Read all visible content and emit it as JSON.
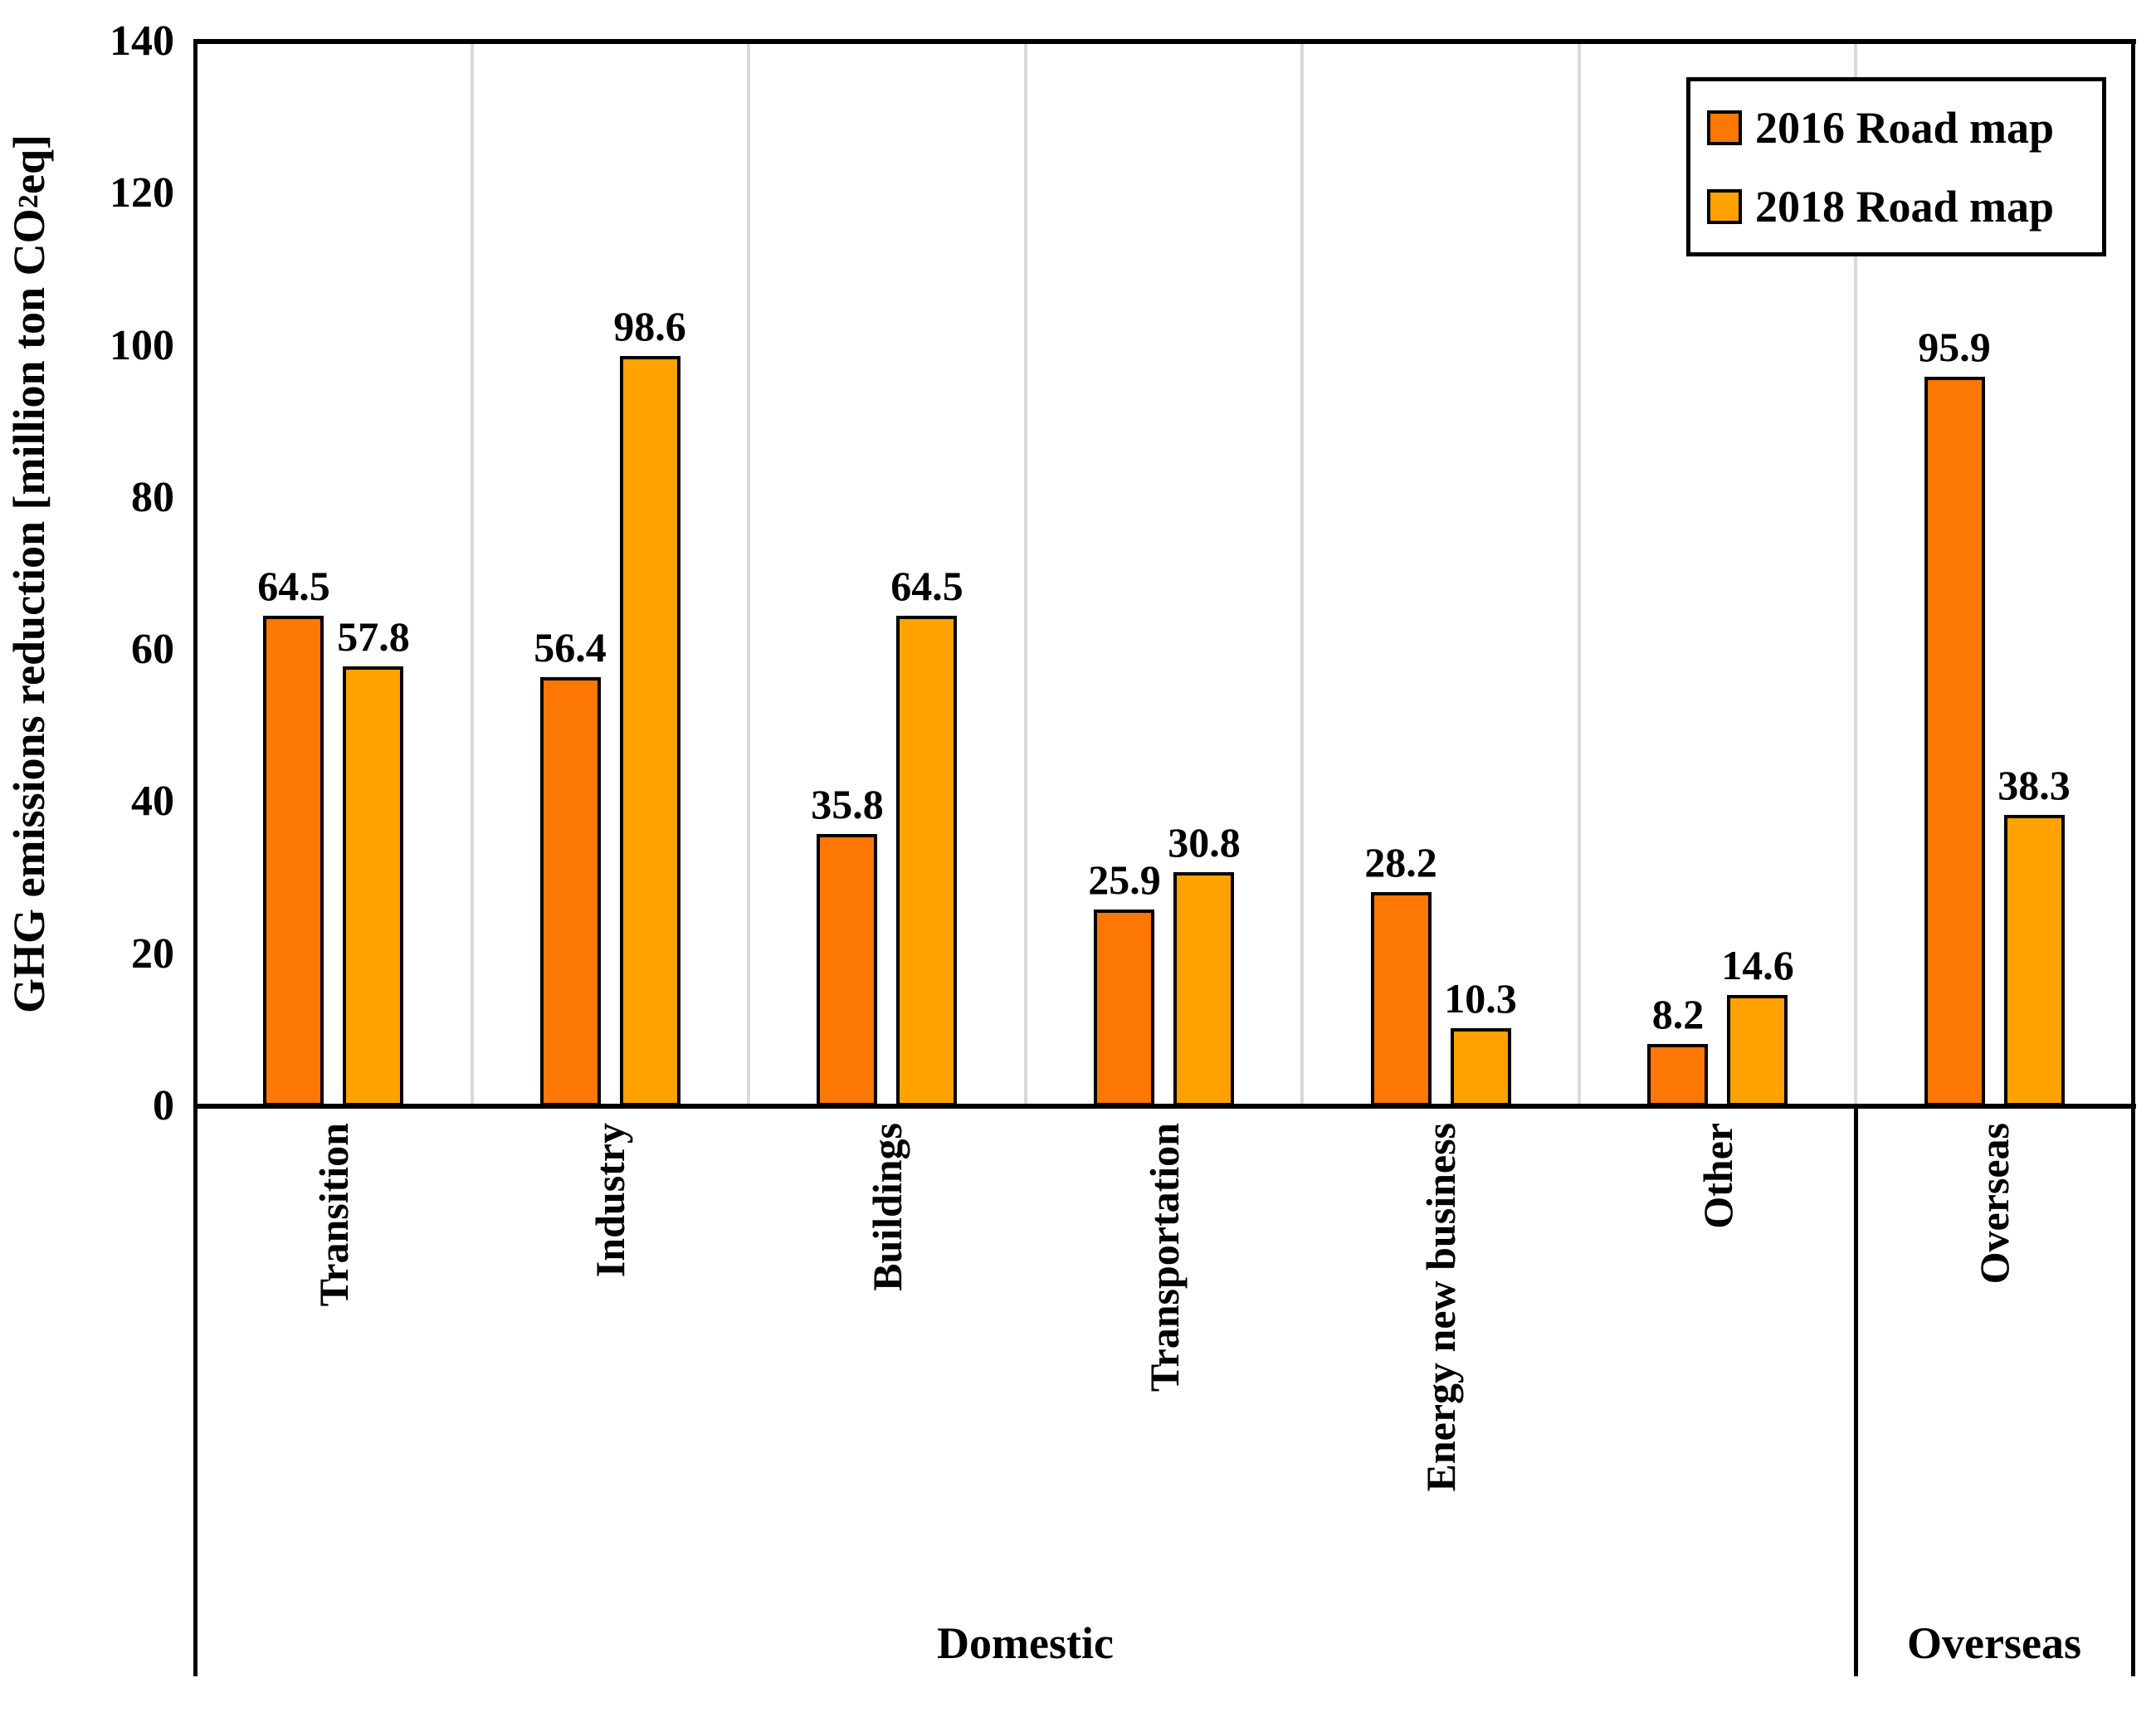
{
  "figure": {
    "background": "#FFFFFF",
    "text_color": "#000000"
  },
  "chart_data": {
    "type": "bar",
    "title": "",
    "xlabel": "",
    "ylabel": "GHG emissions reduction [million ton CO2eq]",
    "ylabel_prefix": "GHG emissions reduction [million ton CO",
    "ylabel_sub": "2",
    "ylabel_suffix": "eq]",
    "ylim": [
      0,
      140
    ],
    "yticks": [
      0,
      20,
      40,
      60,
      80,
      100,
      120,
      140
    ],
    "grid": "vertical category separators only, no horizontal gridlines",
    "gridline_color": "#D9D9D9",
    "bar_border_color": "#000000",
    "legend_position": "top-right inside plot",
    "categories": [
      "Transition",
      "Industry",
      "Buildings",
      "Transportation",
      "Energy new business",
      "Other",
      "Overseas"
    ],
    "groups": [
      {
        "label": "Domestic",
        "span": 6
      },
      {
        "label": "Overseas",
        "span": 1
      }
    ],
    "series": [
      {
        "name": "2016 Road map",
        "color": "#FC7703",
        "values": [
          64.5,
          56.4,
          35.8,
          25.9,
          28.2,
          8.2,
          95.9
        ]
      },
      {
        "name": "2018 Road map",
        "color": "#FFA200",
        "values": [
          57.8,
          98.6,
          64.5,
          30.8,
          10.3,
          14.6,
          38.3
        ]
      }
    ],
    "data_labels_shown": true
  }
}
